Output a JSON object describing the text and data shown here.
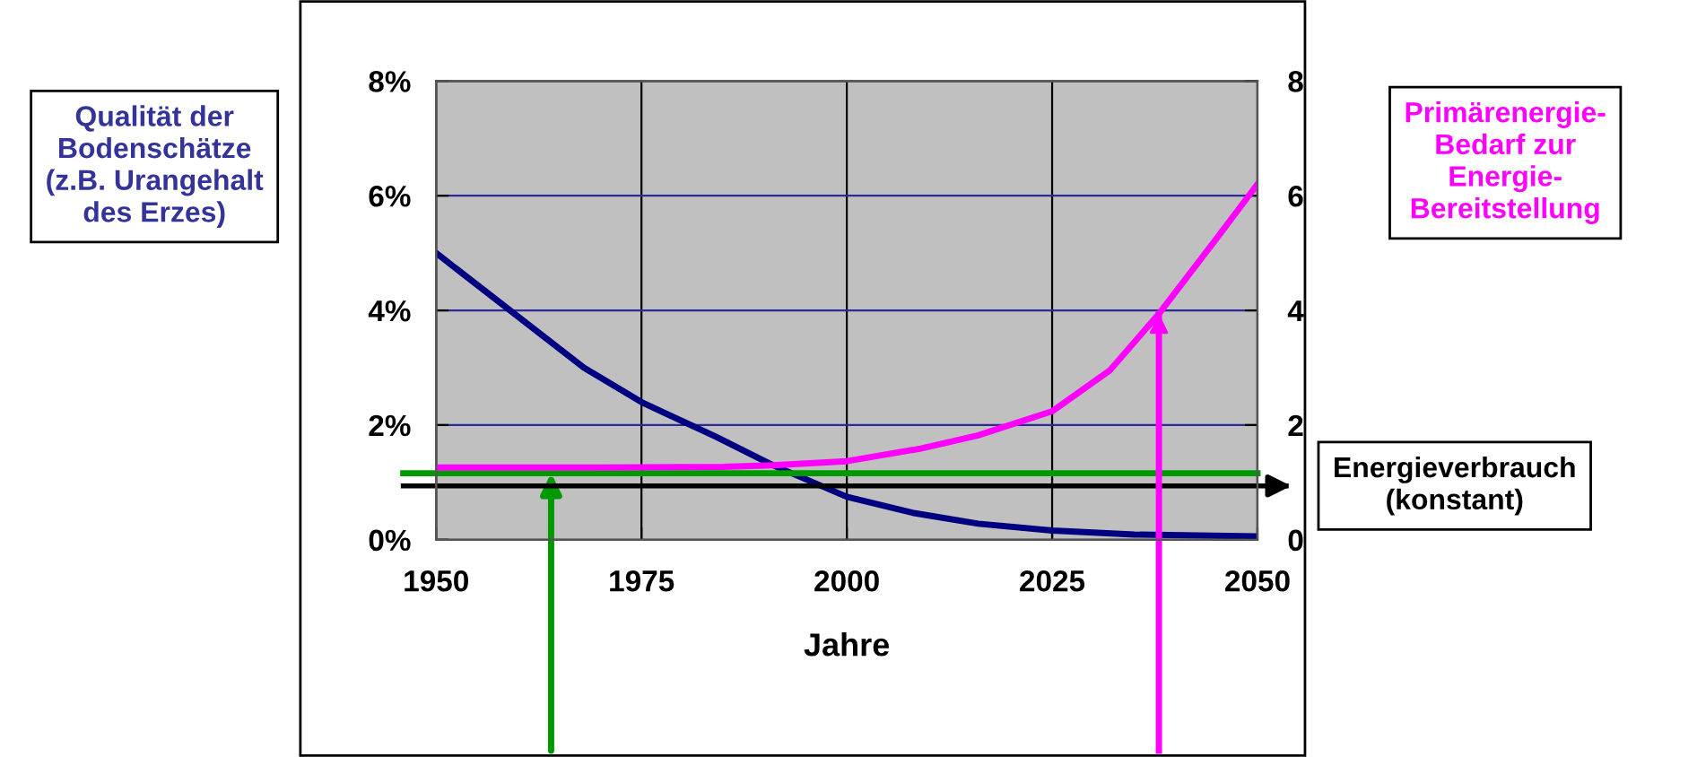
{
  "chart_data": {
    "type": "line",
    "ylabel": "Qualität der\nBodenschätze\n(z.B. Urangehalt\ndes Erzes)",
    "y2label": "Primärenergie-\nBedarf zur\nEnergie-\nBereitstellung",
    "xlabel": "Jahre",
    "series": [
      {
        "color": "#000080",
        "x": [
          1950,
          1968,
          1975,
          1984,
          1991,
          2000,
          2008,
          2016,
          2025,
          2035,
          2050
        ],
        "values": [
          5.0,
          3.0,
          2.4,
          1.8,
          1.3,
          0.75,
          0.47,
          0.28,
          0.16,
          0.09,
          0.06
        ]
      },
      {
        "color": "#ff00ff",
        "axis": "y2",
        "x": [
          1950,
          1970,
          1985,
          1991,
          2000,
          2009,
          2016,
          2025,
          2032,
          2038,
          2045,
          2050
        ],
        "values": [
          1.26,
          1.26,
          1.27,
          1.3,
          1.37,
          1.59,
          1.82,
          2.24,
          2.95,
          3.94,
          5.25,
          6.2
        ]
      }
    ],
    "xlim": [
      1950,
      2050
    ],
    "xticks": [
      1950,
      1975,
      2000,
      2025,
      2050
    ],
    "ylim": [
      0,
      8
    ],
    "yticks": [
      {
        "value": 0,
        "label": "0%"
      },
      {
        "value": 2,
        "label": "2%"
      },
      {
        "value": 4,
        "label": "4%"
      },
      {
        "value": 6,
        "label": "6%"
      },
      {
        "value": 8,
        "label": "8%"
      }
    ],
    "y2lim": [
      0,
      8
    ],
    "y2ticks": [
      0,
      2,
      4,
      6,
      8
    ],
    "ref_lines": [
      {
        "axis": "y",
        "value": 1.16,
        "color": "#009900"
      },
      {
        "axis": "y",
        "value": 0.94,
        "color": "#000000",
        "label": "Energieverbrauch\n(konstant)"
      },
      {
        "axis": "x",
        "value": 2038,
        "color": "#ff00ff"
      }
    ],
    "grid": true,
    "legend": false,
    "marker": "none",
    "line_style": "solid"
  }
}
